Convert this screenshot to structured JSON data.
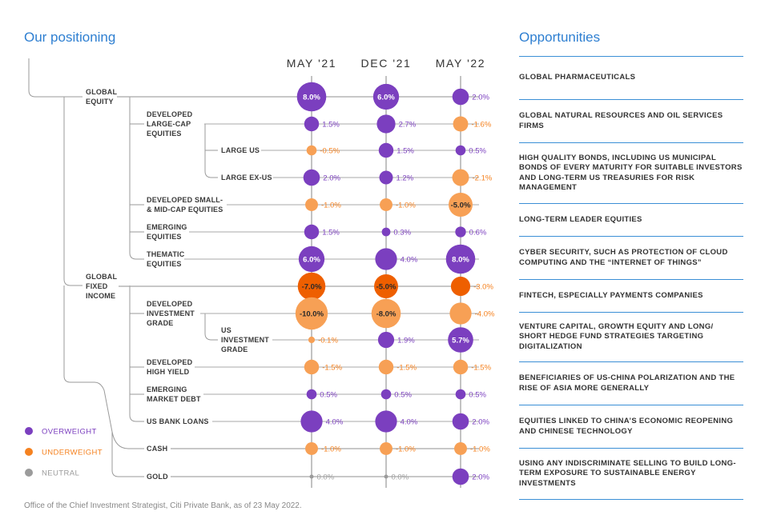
{
  "titles": {
    "left": "Our positioning",
    "right": "Opportunities"
  },
  "footnote": "Office of the Chief Investment Strategist, Citi Private Bank, as of 23 May 2022.",
  "legend": [
    {
      "label": "OVERWEIGHT",
      "color": "#7b3fbf"
    },
    {
      "label": "UNDERWEIGHT",
      "color": "#f58220"
    },
    {
      "label": "NEUTRAL",
      "color": "#9b9b9b"
    }
  ],
  "colors": {
    "overweight": "#7b3fbf",
    "underweight": "#f58220",
    "underweight_dark": "#ee5f00",
    "neutral": "#9b9b9b",
    "accent": "#2e7fd1"
  },
  "chart_data": {
    "type": "bubble",
    "columns": [
      "MAY '21",
      "DEC '21",
      "MAY '22"
    ],
    "rows": [
      {
        "label": "GLOBAL EQUITY",
        "level": 0,
        "values": [
          8.0,
          6.0,
          2.0
        ],
        "labels": [
          "8.0%",
          "6.0%",
          "2.0%"
        ]
      },
      {
        "label": "DEVELOPED LARGE-CAP EQUITIES",
        "level": 1,
        "values": [
          1.5,
          2.7,
          -1.6
        ],
        "labels": [
          "1.5%",
          "2.7%",
          "-1.6%"
        ]
      },
      {
        "label": "LARGE US",
        "level": 2,
        "values": [
          -0.5,
          1.5,
          0.5
        ],
        "labels": [
          "-0.5%",
          "1.5%",
          "0.5%"
        ]
      },
      {
        "label": "LARGE EX-US",
        "level": 2,
        "values": [
          2.0,
          1.2,
          -2.1
        ],
        "labels": [
          "2.0%",
          "1.2%",
          "-2.1%"
        ]
      },
      {
        "label": "DEVELOPED SMALL- & MID-CAP EQUITIES",
        "level": 1,
        "values": [
          -1.0,
          -1.0,
          -5.0
        ],
        "labels": [
          "-1.0%",
          "-1.0%",
          "-5.0%"
        ]
      },
      {
        "label": "EMERGING EQUITIES",
        "level": 1,
        "values": [
          1.5,
          0.3,
          0.6
        ],
        "labels": [
          "1.5%",
          "0.3%",
          "0.6%"
        ]
      },
      {
        "label": "THEMATIC EQUITIES",
        "level": 1,
        "values": [
          6.0,
          4.0,
          8.0
        ],
        "labels": [
          "6.0%",
          "4.0%",
          "8.0%"
        ]
      },
      {
        "label": "GLOBAL FIXED INCOME",
        "level": 0,
        "values": [
          -7.0,
          -5.0,
          -3.0
        ],
        "labels": [
          "-7.0%",
          "-5.0%",
          "-3.0%"
        ]
      },
      {
        "label": "DEVELOPED INVESTMENT GRADE",
        "level": 1,
        "values": [
          -10.0,
          -8.0,
          -4.0
        ],
        "labels": [
          "-10.0%",
          "-8.0%",
          "-4.0%"
        ]
      },
      {
        "label": "US INVESTMENT GRADE",
        "level": 2,
        "values": [
          -0.1,
          1.9,
          5.7
        ],
        "labels": [
          "-0.1%",
          "1.9%",
          "5.7%"
        ]
      },
      {
        "label": "DEVELOPED HIGH YIELD",
        "level": 1,
        "values": [
          -1.5,
          -1.5,
          -1.5
        ],
        "labels": [
          "-1.5%",
          "-1.5%",
          "-1.5%"
        ]
      },
      {
        "label": "EMERGING MARKET DEBT",
        "level": 1,
        "values": [
          0.5,
          0.5,
          0.5
        ],
        "labels": [
          "0.5%",
          "0.5%",
          "0.5%"
        ]
      },
      {
        "label": "US BANK LOANS",
        "level": 1,
        "values": [
          4.0,
          4.0,
          2.0
        ],
        "labels": [
          "4.0%",
          "4.0%",
          "2.0%"
        ]
      },
      {
        "label": "CASH",
        "level": 0,
        "values": [
          -1.0,
          -1.0,
          -1.0
        ],
        "labels": [
          "-1.0%",
          "-1.0%",
          "-1.0%"
        ]
      },
      {
        "label": "GOLD",
        "level": 0,
        "values": [
          0.0,
          0.0,
          2.0
        ],
        "labels": [
          "0.0%",
          "0.0%",
          "2.0%"
        ]
      }
    ]
  },
  "opportunities": [
    "GLOBAL PHARMACEUTICALS",
    "GLOBAL NATURAL RESOURCES AND OIL SERVICES FIRMS",
    "HIGH QUALITY BONDS, INCLUDING US MUNICIPAL BONDS OF EVERY MATURITY FOR SUITABLE INVESTORS AND LONG-TERM US TREASURIES FOR RISK MANAGEMENT",
    "LONG-TERM LEADER EQUITIES",
    "CYBER SECURITY, SUCH AS PROTECTION OF CLOUD COMPUTING AND THE “INTERNET OF THINGS”",
    "FINTECH, ESPECIALLY PAYMENTS COMPANIES",
    "VENTURE CAPITAL, GROWTH EQUITY AND LONG/ SHORT HEDGE FUND STRATEGIES TARGETING DIGITALIZATION",
    "BENEFICIARIES OF US-CHINA POLARIZATION AND THE RISE OF ASIA MORE GENERALLY",
    "EQUITIES LINKED TO CHINA’S ECONOMIC REOPENING AND CHINESE TECHNOLOGY",
    "USING ANY INDISCRIMINATE SELLING TO BUILD LONG-TERM EXPOSURE TO SUSTAINABLE ENERGY INVESTMENTS"
  ]
}
